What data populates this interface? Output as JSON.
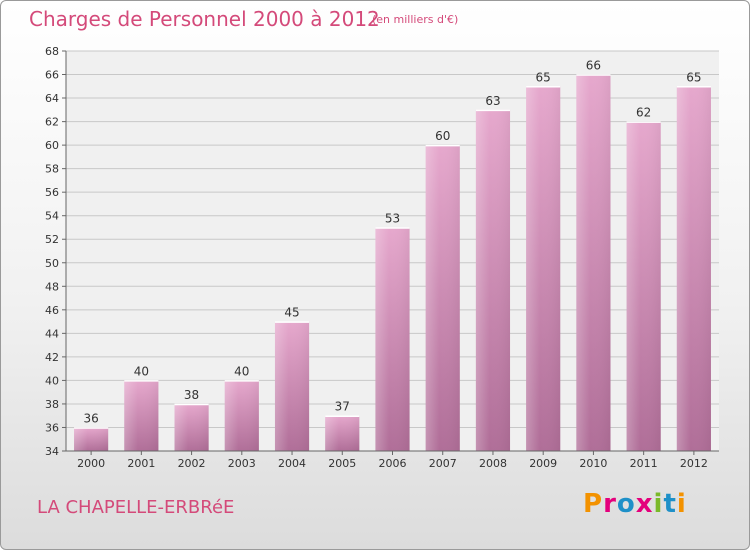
{
  "header": {
    "title": "Charges de Personnel 2000 à 2012",
    "subtitle": "(en milliers d'€)"
  },
  "footer": {
    "location": "LA CHAPELLE-ERBRéE",
    "brand": "Proxiti",
    "brand_colors": [
      "#f39200",
      "#e4007c",
      "#1e90c8",
      "#e4007c",
      "#7ab929",
      "#1e90c8",
      "#f39200"
    ]
  },
  "chart_data": {
    "type": "bar",
    "categories": [
      "2000",
      "2001",
      "2002",
      "2003",
      "2004",
      "2005",
      "2006",
      "2007",
      "2008",
      "2009",
      "2010",
      "2011",
      "2012"
    ],
    "values": [
      36,
      40,
      38,
      40,
      45,
      37,
      53,
      60,
      63,
      65,
      66,
      62,
      65
    ],
    "ylim": [
      34,
      68
    ],
    "yticks": [
      34,
      36,
      38,
      40,
      42,
      44,
      46,
      48,
      50,
      52,
      54,
      56,
      58,
      60,
      62,
      64,
      66,
      68
    ],
    "grid": true,
    "bar_color": "#dc9cc4",
    "label_color": "#333333"
  }
}
